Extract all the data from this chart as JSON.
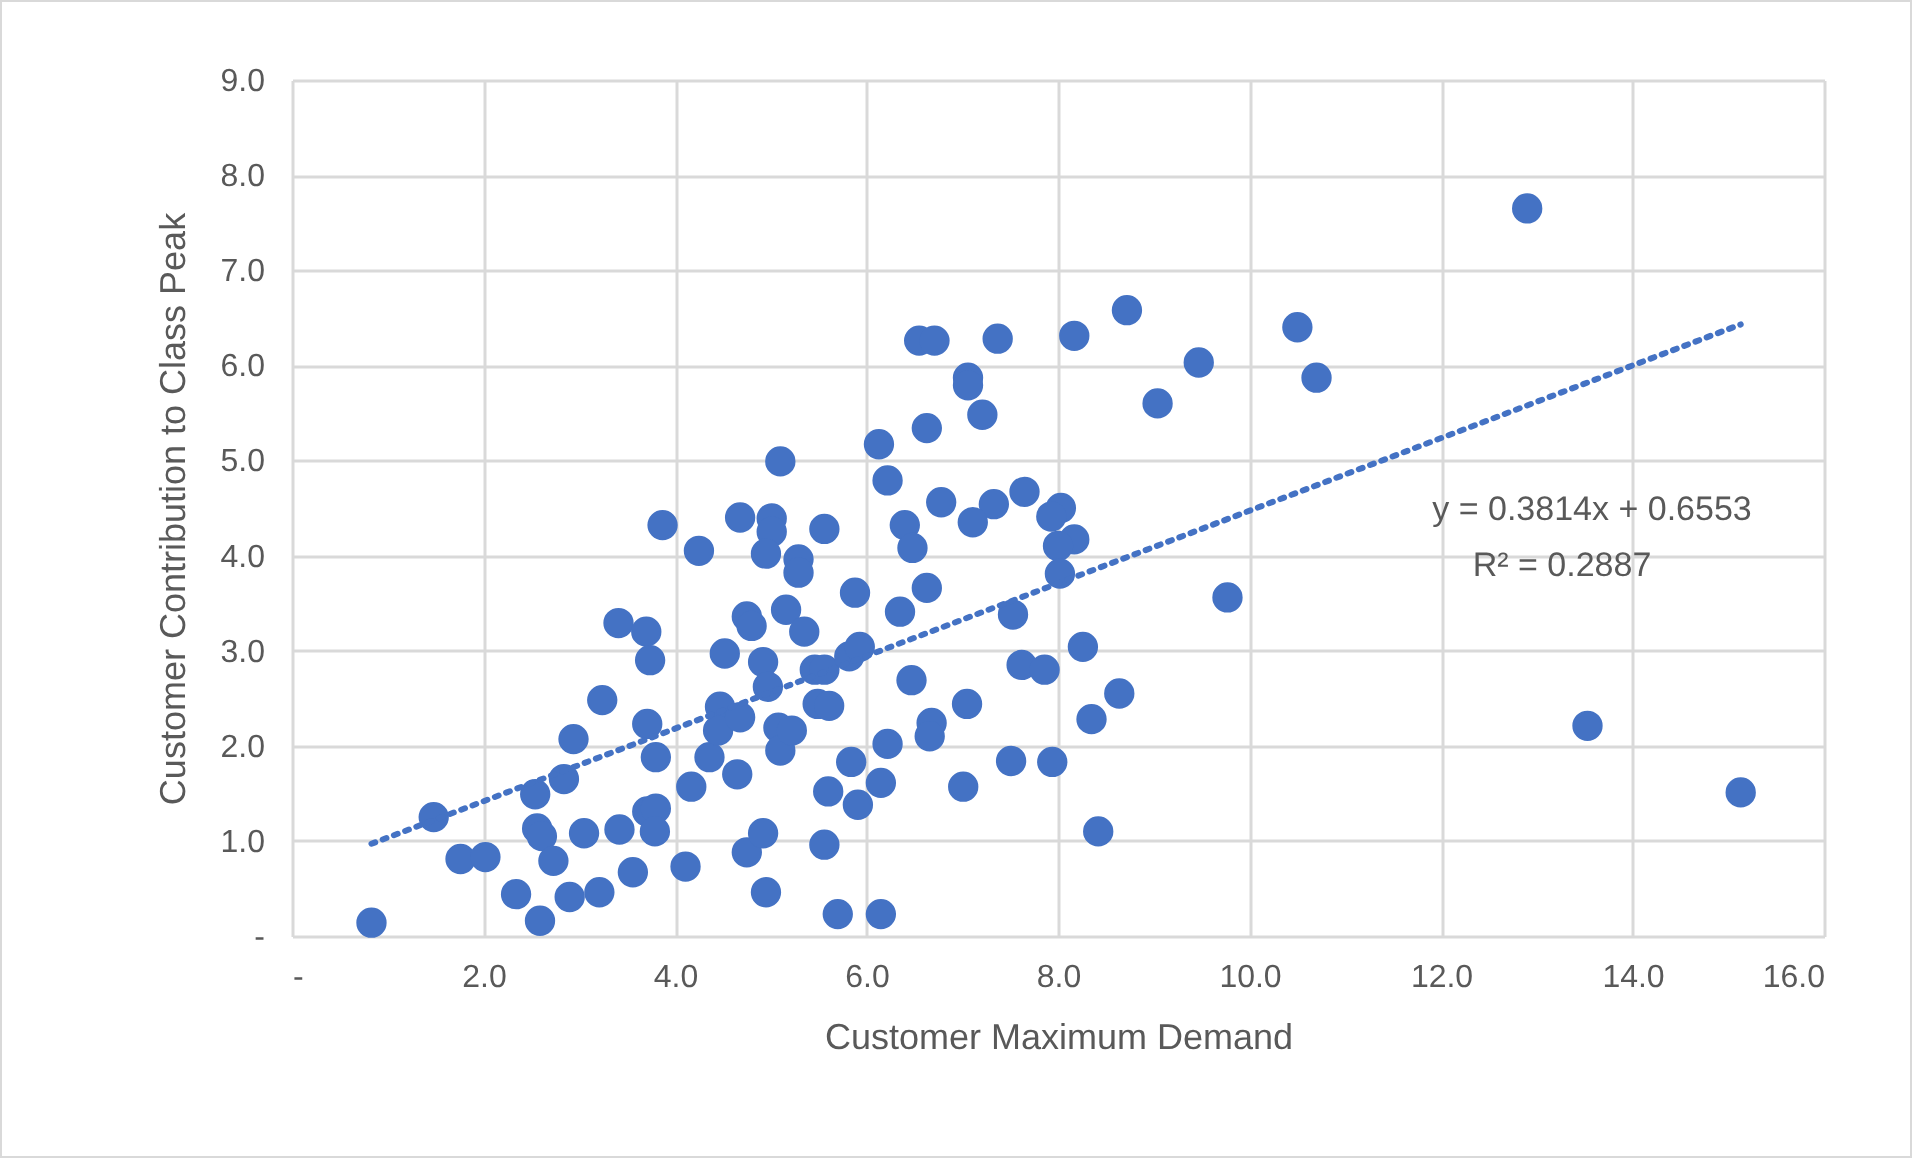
{
  "chart_data": {
    "type": "scatter",
    "xlabel": "Customer Maximum Demand",
    "ylabel": "Customer Contribution to Class Peak",
    "xlim": [
      0,
      16
    ],
    "ylim": [
      0,
      9
    ],
    "xticks": [
      {
        "value": 0,
        "label": "-"
      },
      {
        "value": 2,
        "label": "2.0"
      },
      {
        "value": 4,
        "label": "4.0"
      },
      {
        "value": 6,
        "label": "6.0"
      },
      {
        "value": 8,
        "label": "8.0"
      },
      {
        "value": 10,
        "label": "10.0"
      },
      {
        "value": 12,
        "label": "12.0"
      },
      {
        "value": 14,
        "label": "14.0"
      },
      {
        "value": 16,
        "label": "16.0"
      }
    ],
    "yticks": [
      {
        "value": 0,
        "label": "-"
      },
      {
        "value": 1,
        "label": "1.0"
      },
      {
        "value": 2,
        "label": "2.0"
      },
      {
        "value": 3,
        "label": "3.0"
      },
      {
        "value": 4,
        "label": "4.0"
      },
      {
        "value": 5,
        "label": "5.0"
      },
      {
        "value": 6,
        "label": "6.0"
      },
      {
        "value": 7,
        "label": "7.0"
      },
      {
        "value": 8,
        "label": "8.0"
      },
      {
        "value": 9,
        "label": "9.0"
      }
    ],
    "grid": true,
    "marker": "circle",
    "annotations": [
      "y = 0.3814x + 0.6553",
      "R² = 0.2887"
    ],
    "series": [
      {
        "color": "#4472c4",
        "x": [
          0.83,
          1.48,
          1.76,
          2.02,
          2.34,
          2.59,
          2.54,
          2.56,
          2.61,
          2.73,
          2.84,
          2.94,
          2.9,
          3.05,
          3.21,
          3.24,
          3.42,
          3.41,
          3.56,
          3.7,
          3.74,
          3.71,
          3.8,
          3.71,
          3.8,
          3.79,
          3.87,
          4.11,
          4.17,
          4.25,
          4.36,
          4.47,
          4.45,
          4.52,
          4.65,
          4.68,
          4.68,
          4.75,
          4.8,
          4.75,
          4.92,
          4.92,
          5.01,
          5.01,
          4.95,
          4.97,
          4.95,
          5.1,
          5.08,
          5.1,
          5.22,
          5.16,
          5.29,
          5.29,
          5.35,
          5.46,
          5.56,
          5.49,
          5.61,
          5.56,
          5.56,
          5.6,
          5.7,
          5.88,
          5.84,
          5.91,
          5.82,
          5.93,
          6.15,
          6.13,
          6.22,
          6.4,
          6.48,
          6.35,
          6.22,
          6.15,
          6.47,
          6.55,
          12.9,
          8.72,
          10.5,
          6.71,
          7.37,
          8.17,
          9.47,
          10.7,
          7.06,
          7.06,
          7.21,
          9.04,
          6.63,
          6.78,
          7.33,
          7.65,
          7.11,
          8.03,
          7.93,
          8.17,
          8.0,
          8.02,
          6.63,
          9.77,
          7.53,
          8.26,
          7.62,
          7.86,
          8.64,
          7.05,
          8.35,
          6.68,
          6.66,
          7.51,
          7.94,
          13.53,
          7.01,
          8.42,
          15.13
        ],
        "values": [
          0.14,
          1.25,
          0.81,
          0.83,
          0.44,
          0.16,
          1.49,
          1.13,
          1.05,
          0.79,
          1.65,
          2.07,
          0.41,
          1.08,
          0.46,
          2.48,
          1.12,
          3.29,
          0.67,
          3.2,
          2.9,
          2.23,
          1.88,
          1.31,
          1.34,
          1.1,
          4.32,
          0.73,
          1.57,
          4.05,
          1.88,
          2.41,
          2.16,
          2.97,
          1.7,
          2.3,
          4.4,
          3.36,
          3.26,
          0.88,
          1.08,
          2.88,
          4.39,
          4.25,
          4.02,
          2.62,
          0.46,
          4.99,
          2.19,
          1.95,
          2.16,
          3.43,
          3.96,
          3.82,
          3.2,
          2.8,
          2.8,
          2.44,
          2.42,
          4.28,
          0.96,
          1.52,
          0.23,
          3.61,
          1.83,
          1.38,
          2.94,
          3.04,
          0.23,
          5.17,
          4.79,
          4.32,
          4.08,
          3.41,
          2.02,
          1.61,
          2.69,
          6.26,
          7.65,
          6.58,
          6.4,
          6.26,
          6.28,
          6.31,
          6.03,
          5.87,
          5.87,
          5.79,
          5.48,
          5.6,
          5.34,
          4.56,
          4.54,
          4.67,
          4.35,
          4.5,
          4.41,
          4.17,
          4.1,
          3.81,
          3.66,
          3.56,
          3.38,
          3.04,
          2.85,
          2.8,
          2.55,
          2.44,
          2.28,
          2.24,
          2.1,
          1.84,
          1.83,
          2.21,
          1.57,
          1.1,
          1.51
        ]
      },
      {
        "type": "line",
        "color": "#4472c4",
        "line_style": "dotted",
        "marker": "none",
        "x": [
          0.83,
          15.13
        ],
        "values": [
          0.97,
          6.43
        ]
      }
    ]
  }
}
